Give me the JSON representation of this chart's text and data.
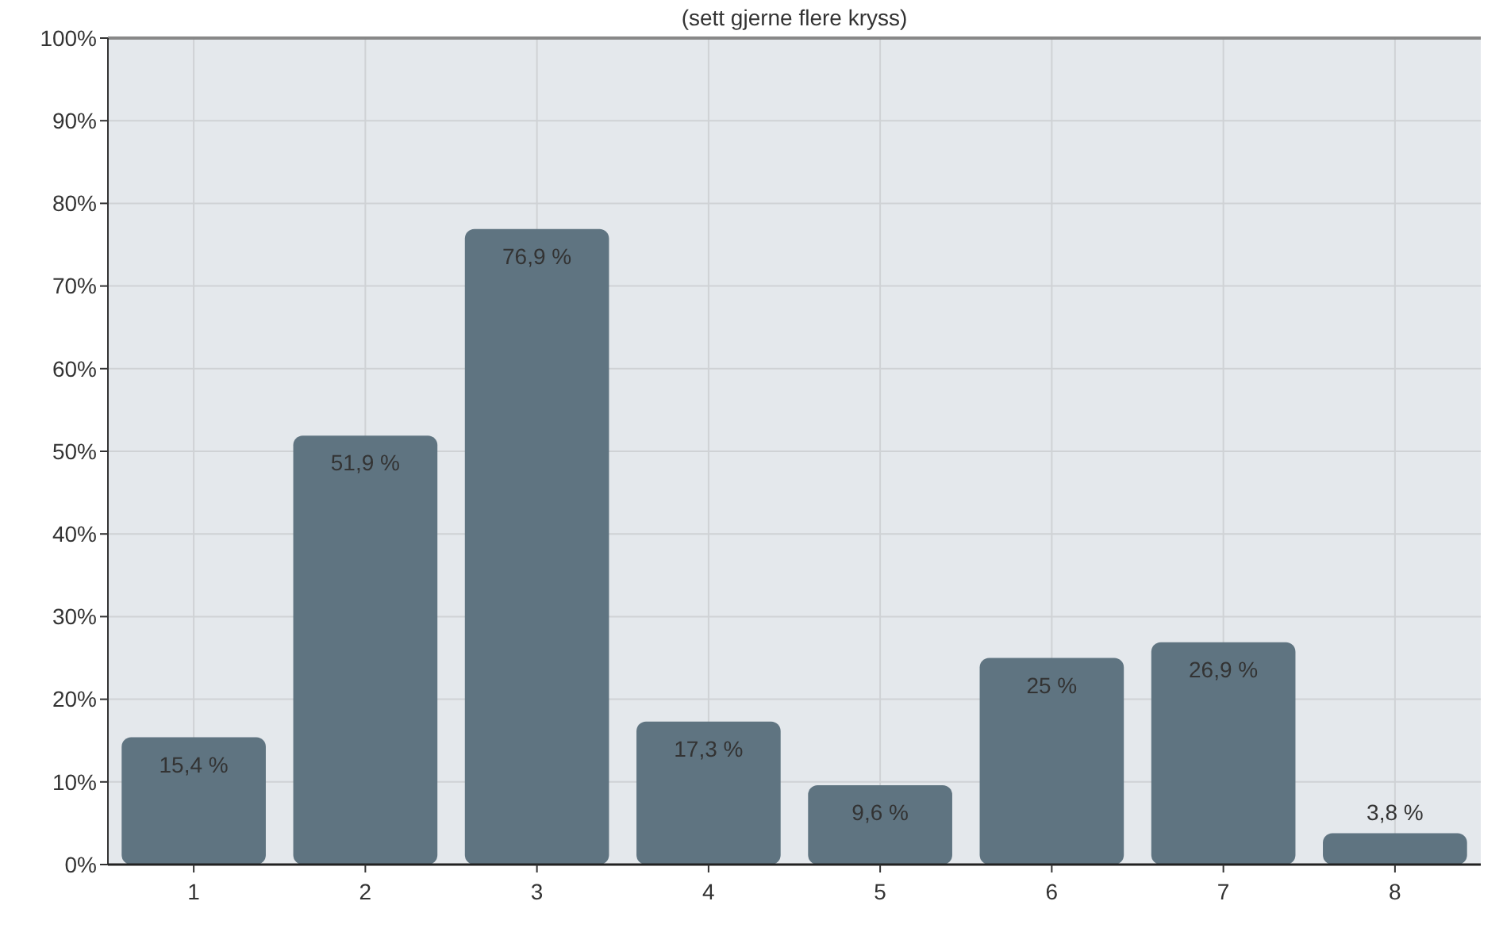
{
  "chart_data": {
    "type": "bar",
    "subtitle": "(sett gjerne flere kryss)",
    "categories": [
      "1",
      "2",
      "3",
      "4",
      "5",
      "6",
      "7",
      "8"
    ],
    "values": [
      15.4,
      51.9,
      76.9,
      17.3,
      9.6,
      25,
      26.9,
      3.8
    ],
    "value_labels": [
      "15,4 %",
      "51,9 %",
      "76,9 %",
      "17,3 %",
      "9,6 %",
      "25 %",
      "26,9 %",
      "3,8 %"
    ],
    "color": "#5f7481",
    "ylim": [
      0,
      100
    ],
    "yticks": [
      {
        "value": 0,
        "label": "0%"
      },
      {
        "value": 10,
        "label": "10%"
      },
      {
        "value": 20,
        "label": "20%"
      },
      {
        "value": 30,
        "label": "30%"
      },
      {
        "value": 40,
        "label": "40%"
      },
      {
        "value": 50,
        "label": "50%"
      },
      {
        "value": 60,
        "label": "60%"
      },
      {
        "value": 70,
        "label": "70%"
      },
      {
        "value": 80,
        "label": "80%"
      },
      {
        "value": 90,
        "label": "90%"
      },
      {
        "value": 100,
        "label": "100%"
      }
    ],
    "grid": true
  }
}
